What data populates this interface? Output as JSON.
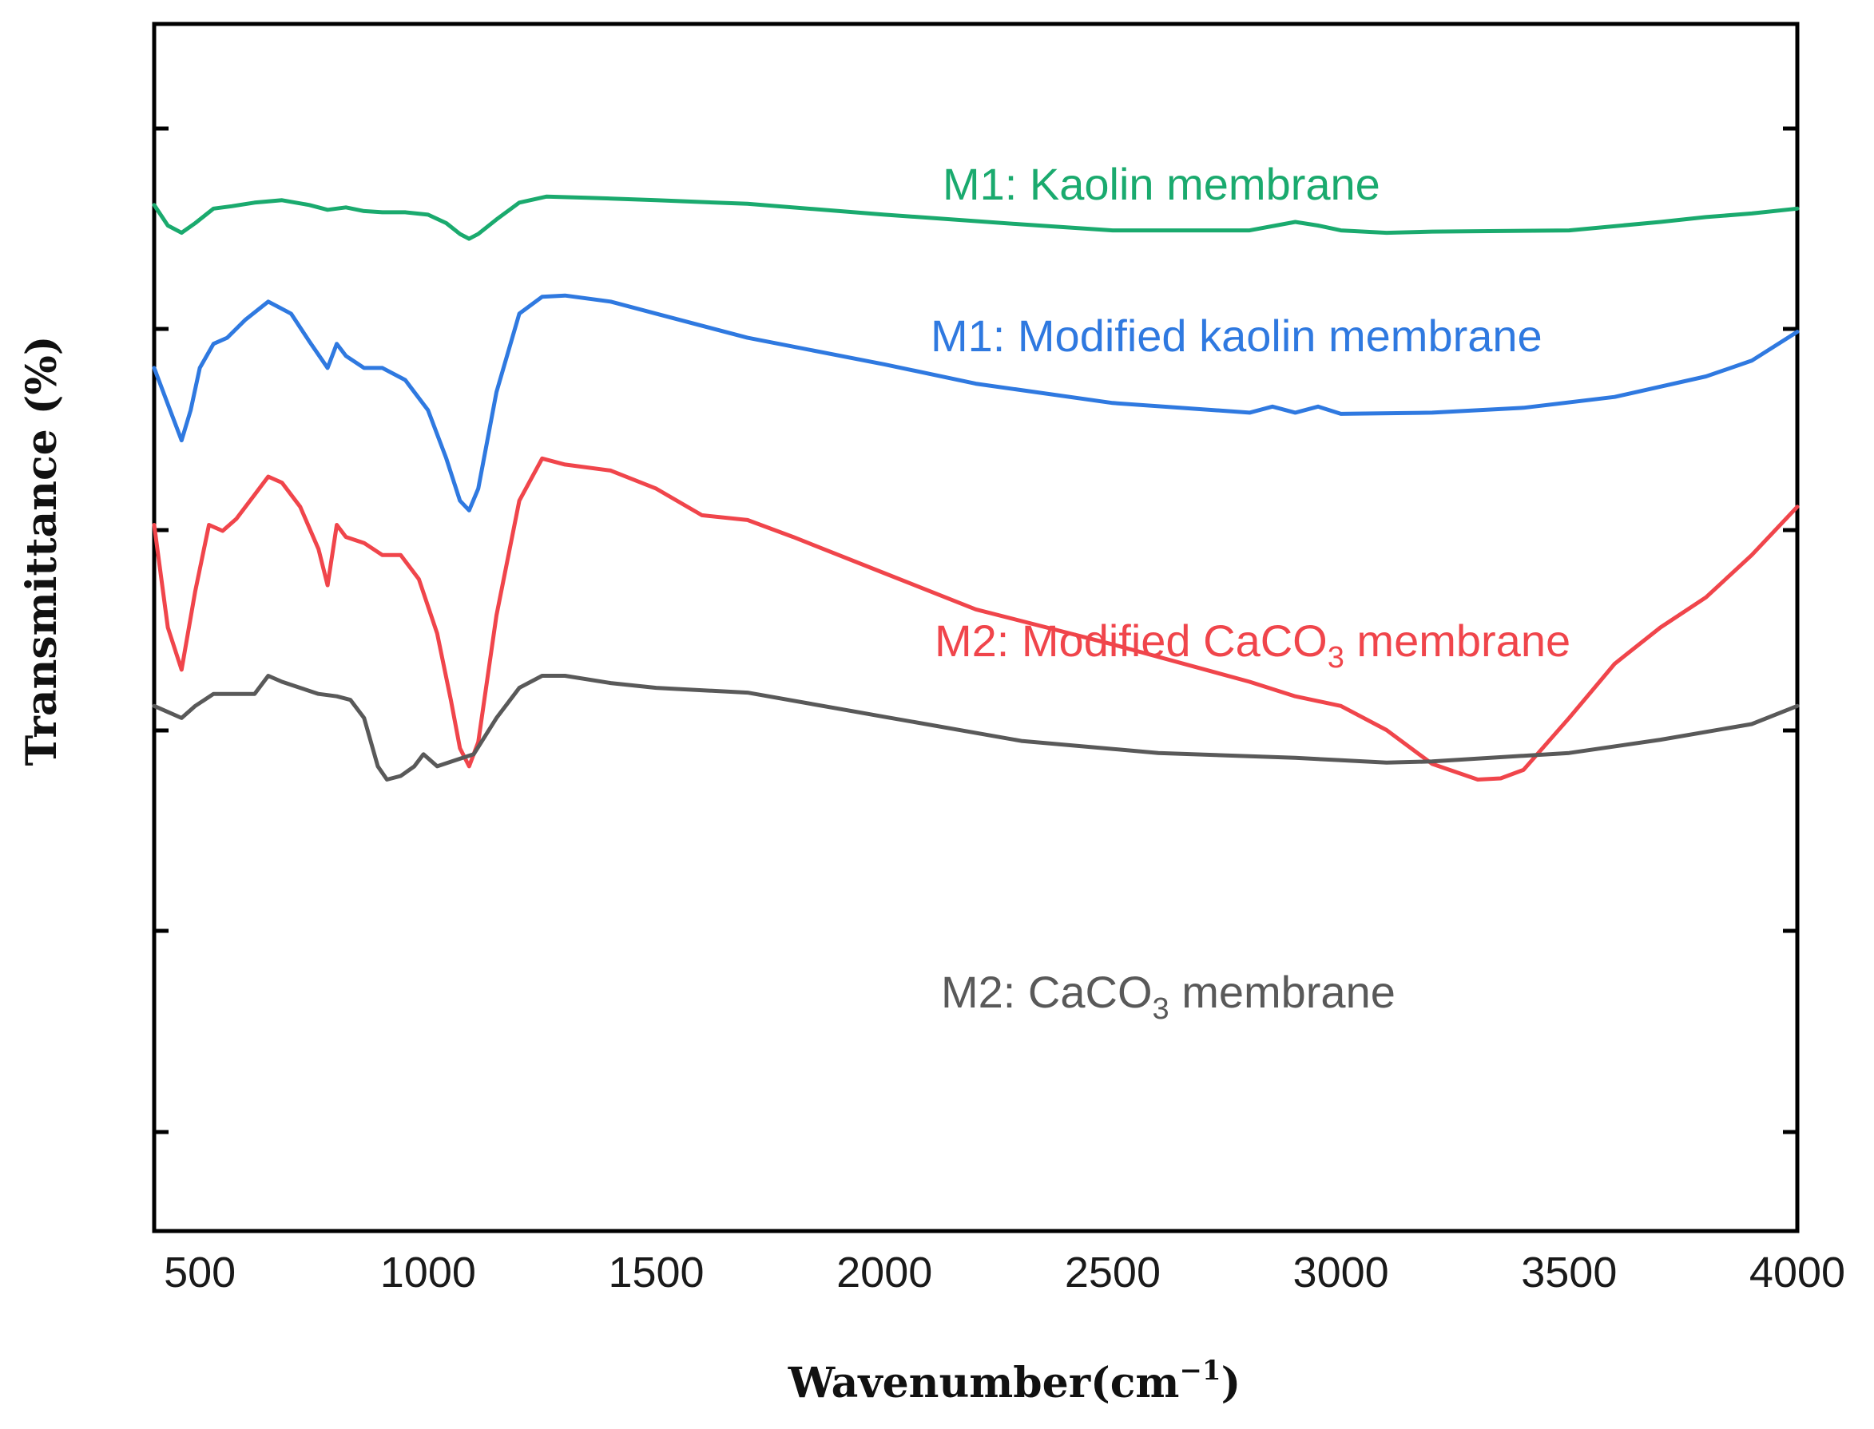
{
  "chart_data": {
    "type": "line",
    "xlabel": "Wavenumber",
    "xlabel_unit_base": "cm",
    "xlabel_unit_exp": "−1",
    "ylabel": "Transmittance (%)",
    "xlim": [
      400,
      4000
    ],
    "ylim": [
      0,
      100
    ],
    "xticks": [
      500,
      1000,
      1500,
      2000,
      2500,
      3000,
      3500,
      4000
    ],
    "y_tick_labels_shown": false,
    "grid": false,
    "legend": "inline labels",
    "series": [
      {
        "name": "M1: Kaolin membrane",
        "color": "#1aaa6e",
        "label_parts": [
          "M1: Kaolin membrane"
        ],
        "x": [
          400,
          430,
          460,
          490,
          530,
          570,
          620,
          680,
          740,
          780,
          820,
          860,
          900,
          950,
          1000,
          1040,
          1070,
          1090,
          1110,
          1150,
          1200,
          1260,
          1350,
          1500,
          1700,
          2000,
          2300,
          2500,
          2800,
          2900,
          2950,
          3000,
          3100,
          3200,
          3500,
          3700,
          3800,
          3900,
          4000
        ],
        "y": [
          85,
          83.3,
          82.7,
          83.5,
          84.7,
          84.9,
          85.2,
          85.4,
          85.0,
          84.6,
          84.8,
          84.5,
          84.4,
          84.4,
          84.2,
          83.5,
          82.6,
          82.2,
          82.6,
          83.8,
          85.2,
          85.7,
          85.6,
          85.4,
          85.1,
          84.2,
          83.4,
          82.9,
          82.9,
          83.6,
          83.3,
          82.9,
          82.7,
          82.8,
          82.9,
          83.6,
          84.0,
          84.3,
          84.7
        ]
      },
      {
        "name": "M1: Modified kaolin membrane",
        "color": "#2f79e0",
        "label_parts": [
          "M1: Modified kaolin membrane"
        ],
        "x": [
          400,
          430,
          460,
          480,
          500,
          530,
          560,
          600,
          650,
          700,
          740,
          780,
          800,
          820,
          860,
          900,
          950,
          1000,
          1040,
          1070,
          1090,
          1110,
          1150,
          1200,
          1250,
          1300,
          1400,
          1500,
          1700,
          2000,
          2200,
          2500,
          2800,
          2850,
          2900,
          2950,
          3000,
          3200,
          3400,
          3600,
          3800,
          3900,
          4000
        ],
        "y": [
          71.5,
          68.5,
          65.5,
          68,
          71.5,
          73.5,
          74,
          75.5,
          77,
          76,
          73.7,
          71.5,
          73.5,
          72.5,
          71.5,
          71.5,
          70.5,
          68,
          64,
          60.5,
          59.7,
          61.5,
          69.5,
          76,
          77.4,
          77.5,
          77,
          76,
          74,
          71.8,
          70.2,
          68.6,
          67.8,
          68.3,
          67.8,
          68.3,
          67.7,
          67.8,
          68.2,
          69.1,
          70.8,
          72.1,
          74.5
        ]
      },
      {
        "name": "M2: Modified CaCO3 membrane",
        "color": "#f0454b",
        "label_parts": [
          "M2: Modified CaCO",
          "3",
          " membrane"
        ],
        "x": [
          400,
          430,
          460,
          490,
          520,
          550,
          580,
          620,
          650,
          680,
          720,
          760,
          780,
          800,
          820,
          860,
          900,
          940,
          980,
          1020,
          1050,
          1070,
          1090,
          1110,
          1150,
          1200,
          1250,
          1300,
          1400,
          1500,
          1600,
          1700,
          1800,
          2000,
          2200,
          2500,
          2800,
          2900,
          3000,
          3100,
          3200,
          3300,
          3350,
          3400,
          3500,
          3600,
          3700,
          3800,
          3900,
          4000
        ],
        "y": [
          58.5,
          50,
          46.5,
          53,
          58.5,
          58,
          59,
          61,
          62.5,
          62,
          60,
          56.5,
          53.5,
          58.5,
          57.5,
          57,
          56,
          56,
          54,
          49.5,
          44,
          40,
          38.5,
          40.5,
          51,
          60.5,
          64,
          63.5,
          63,
          61.5,
          59.3,
          58.9,
          57.5,
          54.5,
          51.5,
          48.6,
          45.5,
          44.3,
          43.5,
          41.5,
          38.7,
          37.4,
          37.5,
          38.2,
          42.5,
          47,
          50,
          52.5,
          56,
          60
        ]
      },
      {
        "name": "M2: CaCO3 membrane",
        "color": "#595959",
        "label_parts": [
          "M2: CaCO",
          "3",
          " membrane"
        ],
        "x": [
          400,
          430,
          460,
          490,
          530,
          570,
          620,
          650,
          680,
          720,
          760,
          800,
          830,
          860,
          890,
          910,
          940,
          970,
          990,
          1020,
          1060,
          1100,
          1150,
          1200,
          1250,
          1300,
          1400,
          1500,
          1700,
          2000,
          2300,
          2600,
          2900,
          3000,
          3100,
          3200,
          3500,
          3700,
          3900,
          4000
        ],
        "y": [
          43.5,
          43,
          42.5,
          43.5,
          44.5,
          44.5,
          44.5,
          46,
          45.5,
          45,
          44.5,
          44.3,
          44,
          42.5,
          38.5,
          37.4,
          37.7,
          38.5,
          39.5,
          38.5,
          39,
          39.5,
          42.5,
          45,
          46,
          46,
          45.4,
          45,
          44.6,
          42.6,
          40.6,
          39.6,
          39.2,
          39,
          38.8,
          38.9,
          39.6,
          40.7,
          42,
          43.5
        ]
      }
    ]
  }
}
